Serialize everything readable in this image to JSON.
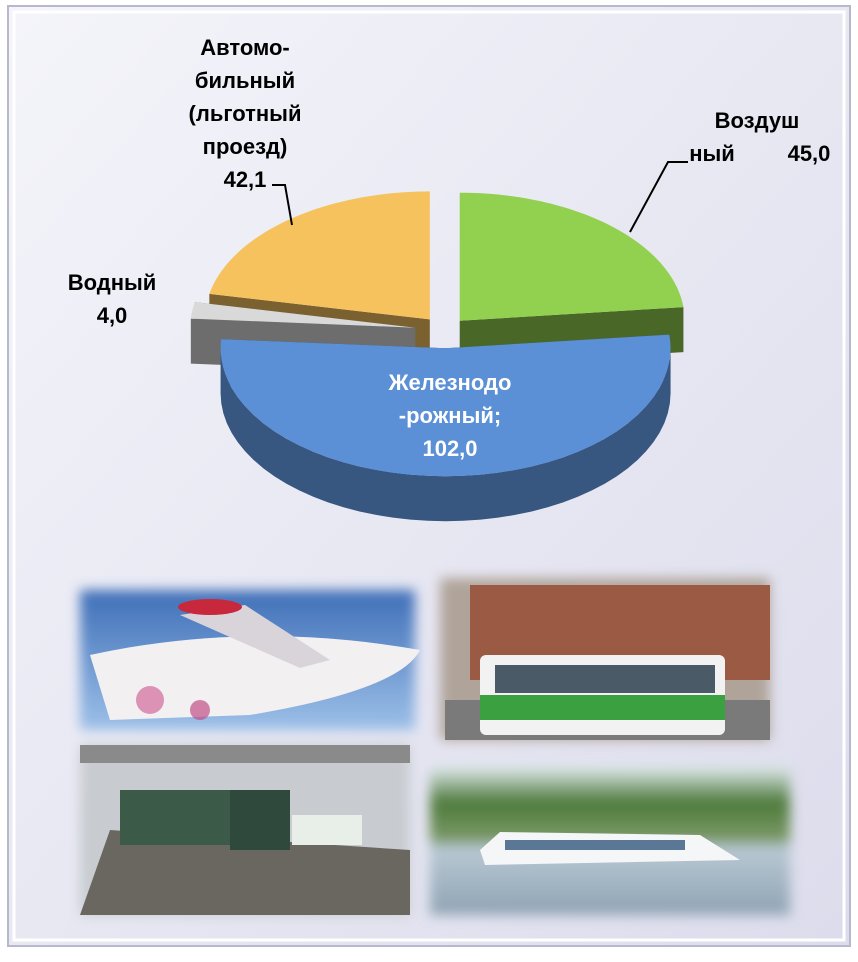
{
  "chart_data": {
    "type": "pie",
    "categories": [
      "Воздуш ный",
      "Железнодо -рожный;",
      "Водный",
      "Автомо- бильный (льготный проезд)"
    ],
    "values": [
      45.0,
      102.0,
      4.0,
      42.1
    ],
    "value_labels": [
      "45,0",
      "102,0",
      "4,0",
      "42,1"
    ],
    "colors": [
      "#92d050",
      "#5b8fd6",
      "#d9d9d9",
      "#f6c25e"
    ]
  }
}
